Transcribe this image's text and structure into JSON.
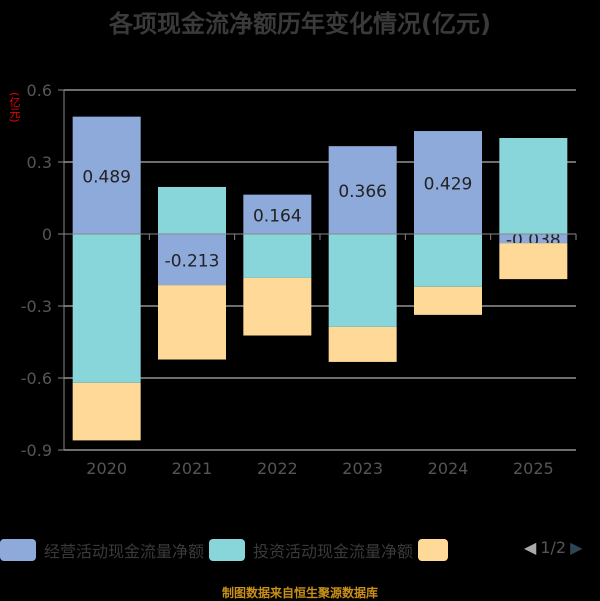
{
  "title": "各项现金流净额历年变化情况(亿元)",
  "source": "制图数据来自恒生聚源数据库",
  "pager": "1/2",
  "chart_data": {
    "type": "bar",
    "stacked": true,
    "title": "各项现金流净额历年变化情况(亿元)",
    "ylabel": "(亿元)",
    "ylim": [
      -0.9,
      0.6
    ],
    "yticks": [
      "0.6",
      "0.3",
      "0",
      "-0.3",
      "-0.6",
      "-0.9"
    ],
    "categories": [
      "2020",
      "2021",
      "2022",
      "2023",
      "2024",
      "2025"
    ],
    "series": [
      {
        "name": "经营活动现金流量净额",
        "color": "#8eaadb",
        "values": [
          0.489,
          -0.213,
          0.164,
          0.366,
          0.429,
          -0.038
        ],
        "labels": [
          "0.489",
          "-0.213",
          "0.164",
          "0.366",
          "0.429",
          "-0.038"
        ]
      },
      {
        "name": "投资活动现金流量净额",
        "color": "#88d6d9",
        "values": [
          -0.62,
          0.196,
          -0.183,
          -0.387,
          -0.22,
          0.4
        ]
      },
      {
        "name": "",
        "color": "#fed998",
        "values": [
          -0.24,
          -0.31,
          -0.24,
          -0.146,
          -0.117,
          -0.15
        ]
      }
    ],
    "legend": "bottom",
    "grid": true
  }
}
